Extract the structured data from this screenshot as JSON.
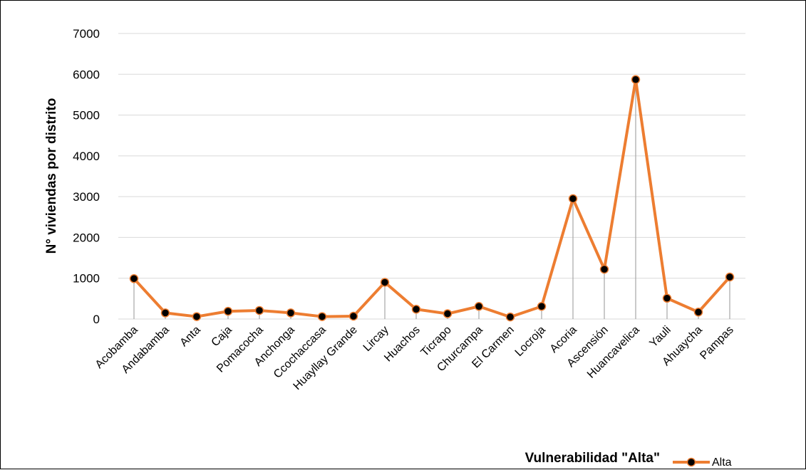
{
  "chart_data": {
    "type": "line",
    "title": "",
    "xlabel": "Vulnerabilidad \"Alta\"",
    "ylabel": "N° viviendas por distrito",
    "ylim": [
      0,
      7000
    ],
    "yticks": [
      0,
      1000,
      2000,
      3000,
      4000,
      5000,
      6000,
      7000
    ],
    "grid": true,
    "drop_lines": true,
    "legend_position": "bottom-right",
    "categories": [
      "Acobamba",
      "Andabamba",
      "Anta",
      "Caja",
      "Pomacocha",
      "Anchonga",
      "Ccochaccasa",
      "Huayllay Grande",
      "Lircay",
      "Huachos",
      "Ticrapo",
      "Churcampa",
      "El Carmen",
      "Locroja",
      "Acoria",
      "Ascensión",
      "Huancavelica",
      "Yauli",
      "Ahuaycha",
      "Pampas"
    ],
    "series": [
      {
        "name": "Alta",
        "color": "#ED7D31",
        "marker_color": "#000000",
        "values": [
          990,
          150,
          60,
          190,
          210,
          150,
          60,
          70,
          900,
          240,
          130,
          310,
          50,
          310,
          2950,
          1220,
          5870,
          510,
          170,
          1030
        ]
      }
    ]
  }
}
